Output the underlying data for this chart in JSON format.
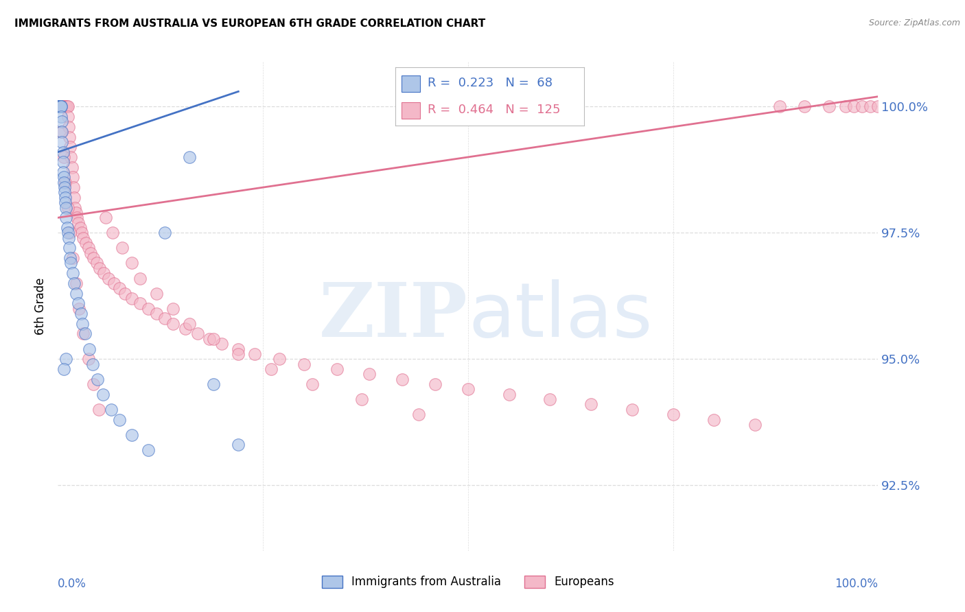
{
  "title": "IMMIGRANTS FROM AUSTRALIA VS EUROPEAN 6TH GRADE CORRELATION CHART",
  "source": "Source: ZipAtlas.com",
  "ylabel": "6th Grade",
  "yticks": [
    92.5,
    95.0,
    97.5,
    100.0
  ],
  "ytick_labels": [
    "92.5%",
    "95.0%",
    "97.5%",
    "100.0%"
  ],
  "xlim": [
    0.0,
    1.0
  ],
  "ylim": [
    91.2,
    100.9
  ],
  "legend_blue_R": "0.223",
  "legend_blue_N": "68",
  "legend_pink_R": "0.464",
  "legend_pink_N": "125",
  "blue_fill": "#aec6e8",
  "blue_edge": "#4472c4",
  "pink_fill": "#f4b8c8",
  "pink_edge": "#e07090",
  "blue_line": "#4472c4",
  "pink_line": "#e07090",
  "grid_color": "#dddddd",
  "blue_x": [
    0.001,
    0.001,
    0.001,
    0.001,
    0.001,
    0.001,
    0.001,
    0.001,
    0.001,
    0.001,
    0.001,
    0.001,
    0.001,
    0.001,
    0.002,
    0.002,
    0.002,
    0.002,
    0.002,
    0.002,
    0.003,
    0.003,
    0.003,
    0.003,
    0.004,
    0.004,
    0.004,
    0.005,
    0.005,
    0.005,
    0.006,
    0.006,
    0.006,
    0.007,
    0.007,
    0.008,
    0.008,
    0.009,
    0.009,
    0.01,
    0.01,
    0.011,
    0.012,
    0.013,
    0.014,
    0.015,
    0.016,
    0.018,
    0.02,
    0.022,
    0.025,
    0.028,
    0.03,
    0.033,
    0.038,
    0.042,
    0.048,
    0.055,
    0.065,
    0.075,
    0.09,
    0.11,
    0.13,
    0.16,
    0.19,
    0.22,
    0.01,
    0.007
  ],
  "blue_y": [
    100.0,
    100.0,
    100.0,
    100.0,
    100.0,
    100.0,
    100.0,
    100.0,
    100.0,
    100.0,
    100.0,
    100.0,
    100.0,
    100.0,
    100.0,
    100.0,
    100.0,
    100.0,
    100.0,
    100.0,
    100.0,
    100.0,
    100.0,
    100.0,
    100.0,
    100.0,
    99.8,
    99.7,
    99.5,
    99.3,
    99.1,
    98.9,
    98.7,
    98.6,
    98.5,
    98.4,
    98.3,
    98.2,
    98.1,
    98.0,
    97.8,
    97.6,
    97.5,
    97.4,
    97.2,
    97.0,
    96.9,
    96.7,
    96.5,
    96.3,
    96.1,
    95.9,
    95.7,
    95.5,
    95.2,
    94.9,
    94.6,
    94.3,
    94.0,
    93.8,
    93.5,
    93.2,
    97.5,
    99.0,
    94.5,
    93.3,
    95.0,
    94.8
  ],
  "pink_x": [
    0.001,
    0.001,
    0.001,
    0.001,
    0.001,
    0.001,
    0.001,
    0.001,
    0.001,
    0.001,
    0.001,
    0.002,
    0.002,
    0.002,
    0.002,
    0.003,
    0.003,
    0.003,
    0.003,
    0.004,
    0.004,
    0.004,
    0.005,
    0.005,
    0.005,
    0.006,
    0.006,
    0.006,
    0.007,
    0.007,
    0.008,
    0.008,
    0.009,
    0.009,
    0.01,
    0.01,
    0.011,
    0.012,
    0.012,
    0.013,
    0.014,
    0.015,
    0.016,
    0.017,
    0.018,
    0.019,
    0.02,
    0.021,
    0.022,
    0.023,
    0.025,
    0.027,
    0.029,
    0.031,
    0.034,
    0.037,
    0.04,
    0.043,
    0.047,
    0.051,
    0.056,
    0.062,
    0.068,
    0.075,
    0.082,
    0.09,
    0.1,
    0.11,
    0.12,
    0.13,
    0.14,
    0.155,
    0.17,
    0.185,
    0.2,
    0.22,
    0.24,
    0.27,
    0.3,
    0.34,
    0.38,
    0.42,
    0.46,
    0.5,
    0.55,
    0.6,
    0.65,
    0.7,
    0.75,
    0.8,
    0.85,
    0.88,
    0.91,
    0.94,
    0.96,
    0.97,
    0.98,
    0.99,
    1.0,
    0.004,
    0.007,
    0.009,
    0.012,
    0.015,
    0.018,
    0.022,
    0.026,
    0.031,
    0.037,
    0.043,
    0.05,
    0.058,
    0.067,
    0.078,
    0.09,
    0.1,
    0.12,
    0.14,
    0.16,
    0.19,
    0.22,
    0.26,
    0.31,
    0.37,
    0.44
  ],
  "pink_y": [
    100.0,
    100.0,
    100.0,
    100.0,
    100.0,
    100.0,
    100.0,
    100.0,
    100.0,
    100.0,
    100.0,
    100.0,
    100.0,
    100.0,
    100.0,
    100.0,
    100.0,
    100.0,
    100.0,
    100.0,
    100.0,
    100.0,
    100.0,
    100.0,
    100.0,
    100.0,
    100.0,
    100.0,
    100.0,
    100.0,
    100.0,
    100.0,
    100.0,
    100.0,
    100.0,
    100.0,
    100.0,
    100.0,
    99.8,
    99.6,
    99.4,
    99.2,
    99.0,
    98.8,
    98.6,
    98.4,
    98.2,
    98.0,
    97.9,
    97.8,
    97.7,
    97.6,
    97.5,
    97.4,
    97.3,
    97.2,
    97.1,
    97.0,
    96.9,
    96.8,
    96.7,
    96.6,
    96.5,
    96.4,
    96.3,
    96.2,
    96.1,
    96.0,
    95.9,
    95.8,
    95.7,
    95.6,
    95.5,
    95.4,
    95.3,
    95.2,
    95.1,
    95.0,
    94.9,
    94.8,
    94.7,
    94.6,
    94.5,
    94.4,
    94.3,
    94.2,
    94.1,
    94.0,
    93.9,
    93.8,
    93.7,
    100.0,
    100.0,
    100.0,
    100.0,
    100.0,
    100.0,
    100.0,
    100.0,
    99.5,
    99.0,
    98.5,
    98.0,
    97.5,
    97.0,
    96.5,
    96.0,
    95.5,
    95.0,
    94.5,
    94.0,
    97.8,
    97.5,
    97.2,
    96.9,
    96.6,
    96.3,
    96.0,
    95.7,
    95.4,
    95.1,
    94.8,
    94.5,
    94.2,
    93.9
  ],
  "blue_trendline_x": [
    0.0,
    0.22
  ],
  "blue_trendline_y": [
    99.1,
    100.3
  ],
  "pink_trendline_x": [
    0.0,
    1.0
  ],
  "pink_trendline_y": [
    97.8,
    100.2
  ]
}
